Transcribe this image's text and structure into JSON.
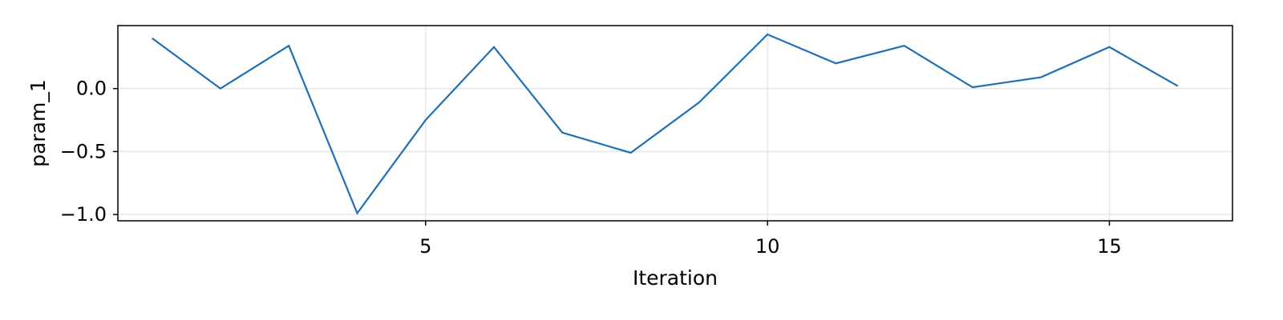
{
  "chart_data": {
    "type": "line",
    "title": "",
    "xlabel": "Iteration",
    "ylabel": "param_1",
    "xlim": [
      0.5,
      16.8
    ],
    "ylim": [
      -1.05,
      0.5
    ],
    "x_ticks": [
      5,
      10,
      15
    ],
    "x_tick_labels": [
      "5",
      "10",
      "15"
    ],
    "y_ticks": [
      0.0,
      -0.5,
      -1.0
    ],
    "y_tick_labels": [
      "0.0",
      "−0.5",
      "−1.0"
    ],
    "grid": true,
    "legend": "none",
    "series": [
      {
        "color": "#1f6fb4",
        "x": [
          1,
          2,
          3,
          4,
          5,
          6,
          7,
          8,
          9,
          10,
          11,
          12,
          13,
          14,
          15,
          16
        ],
        "y": [
          0.4,
          0.0,
          0.34,
          -0.99,
          -0.25,
          0.33,
          -0.35,
          -0.51,
          -0.11,
          0.43,
          0.2,
          0.34,
          0.01,
          0.09,
          0.33,
          0.02
        ]
      }
    ]
  }
}
